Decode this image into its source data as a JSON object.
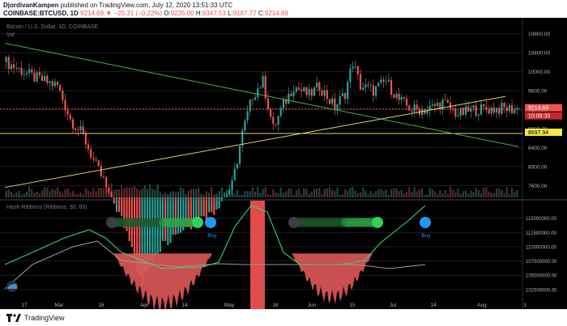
{
  "header": {
    "author": "DjordivanKampen",
    "published": "published on TradingView.com, July 12, 2020 13:51:33 UTC",
    "symbol": "COINBASE:BTCUSD, 1D",
    "price": "9214.69",
    "change": "−20.31 (−0.22%)",
    "o_label": "O:",
    "o_value": "9235.00",
    "h_label": "H:",
    "h_value": "9347.53",
    "l_label": "L:",
    "l_value": "9187.77",
    "c_label": "C:",
    "c_value": "9214.69"
  },
  "chart_data": {
    "type": "candlestick",
    "title": "Bitcoin / U.S. Dollar, 1D, COINBASE",
    "subtitle": "Vol",
    "price_axis": [
      "10800.00",
      "10400.00",
      "10000.00",
      "9600.00",
      "9200.00",
      "8800.00",
      "8400.00",
      "8000.00",
      "7600.00"
    ],
    "price_ylim": [
      7350,
      11000
    ],
    "price_labels": {
      "current": "9214.69",
      "countdown": "10:08:30",
      "support": "8697.94"
    },
    "support_level": 8697.94,
    "x_ticks": [
      "17",
      "Mar",
      "16",
      "Apr",
      "14",
      "May",
      "18",
      "Jun",
      "15",
      "Jul",
      "14",
      "Aug",
      "1"
    ],
    "trendlines": [
      {
        "name": "descending",
        "color": "#4caf50",
        "from": [
          0,
          10600
        ],
        "to": [
          200,
          8420
        ]
      },
      {
        "name": "ascending",
        "color": "#e0d36a",
        "from": [
          0,
          7560
        ],
        "to": [
          195,
          9480
        ]
      }
    ],
    "indicator": {
      "title": "Hash Ribbons (Ribbons, 30, 60)",
      "axis": [
        "115000000.00",
        "112500000.00",
        "110000000.00",
        "107500000.00",
        "105000000.00",
        "102500000.00"
      ],
      "ylim": [
        100500000,
        117500000
      ],
      "buy_label": "Buy",
      "buy_signals": [
        {
          "day": 80,
          "label": "Buy"
        },
        {
          "day": 166,
          "label": "Buy"
        }
      ]
    },
    "colors": {
      "up": "#26a69a",
      "down": "#ef5350",
      "background": "#000000",
      "buy": "#2196f3"
    }
  },
  "footer": {
    "brand": "TradingView"
  }
}
